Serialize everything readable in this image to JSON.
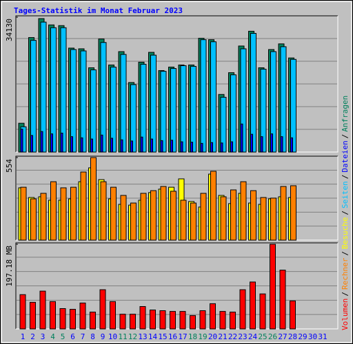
{
  "chart_data": [
    {
      "type": "bar",
      "title": "Tages-Statistik im Monat Februar 2023",
      "ylim": [
        0,
        34130
      ],
      "yticks": [
        34130
      ],
      "legend_separator": "/",
      "series": [
        {
          "name": "Anfragen",
          "color": "#00805c",
          "values": [
            7290,
            28980,
            33780,
            32180,
            32000,
            26310,
            26130,
            21330,
            28620,
            22040,
            25420,
            17600,
            22750,
            25240,
            20620,
            21510,
            22040,
            22040,
            28800,
            28440,
            14580,
            20090,
            26840,
            30580,
            21330,
            25950,
            27380,
            23820,
            null,
            null,
            null
          ]
        },
        {
          "name": "Dateien",
          "color": "#0000ff",
          "values": [
            5800,
            4200,
            5200,
            4600,
            4800,
            3900,
            3600,
            3300,
            4300,
            3500,
            3100,
            2800,
            3800,
            3300,
            2900,
            3000,
            2600,
            2500,
            2200,
            2400,
            2300,
            2600,
            7100,
            4500,
            3900,
            4600,
            3900,
            3600,
            null,
            null,
            null
          ]
        },
        {
          "name": "Seiten",
          "color": "#00c0ff",
          "values": [
            6400,
            28270,
            32890,
            31470,
            31470,
            25950,
            25600,
            20800,
            27730,
            21510,
            24710,
            17070,
            22220,
            24530,
            20440,
            21150,
            21860,
            21690,
            28440,
            27910,
            13870,
            19550,
            26130,
            30040,
            20980,
            25420,
            26660,
            23460,
            null,
            null,
            null
          ]
        }
      ]
    },
    {
      "type": "bar",
      "ylim": [
        0,
        554
      ],
      "yticks": [
        554
      ],
      "series": [
        {
          "name": "Besuche",
          "color": "#ffff00",
          "values": [
            351,
            286,
            291,
            268,
            268,
            277,
            392,
            485,
            406,
            277,
            240,
            235,
            268,
            319,
            342,
            355,
            411,
            259,
            222,
            443,
            300,
            245,
            314,
            249,
            240,
            277,
            291,
            286,
            null,
            null,
            null
          ]
        },
        {
          "name": "Rechner",
          "color": "#ff8000",
          "values": [
            355,
            277,
            314,
            392,
            351,
            355,
            457,
            554,
            392,
            355,
            300,
            249,
            314,
            332,
            360,
            328,
            268,
            249,
            314,
            462,
            291,
            337,
            392,
            332,
            286,
            282,
            360,
            365,
            null,
            null,
            null
          ]
        }
      ]
    },
    {
      "type": "bar",
      "ylim": [
        0,
        197.18
      ],
      "yticks": [
        {
          "value": 197.18,
          "label": "197.18 MB"
        }
      ],
      "categories": [
        "1",
        "2",
        "3",
        "4",
        "5",
        "6",
        "7",
        "8",
        "9",
        "10",
        "11",
        "12",
        "13",
        "14",
        "15",
        "16",
        "17",
        "18",
        "19",
        "20",
        "21",
        "22",
        "23",
        "24",
        "25",
        "26",
        "27",
        "28",
        "29",
        "30",
        "31"
      ],
      "category_colors": [
        "#0000ff",
        "#0000ff",
        "#0000ff",
        "#00805c",
        "#00805c",
        "#0000ff",
        "#0000ff",
        "#0000ff",
        "#0000ff",
        "#0000ff",
        "#00805c",
        "#00805c",
        "#0000ff",
        "#0000ff",
        "#0000ff",
        "#0000ff",
        "#0000ff",
        "#00805c",
        "#00805c",
        "#0000ff",
        "#0000ff",
        "#0000ff",
        "#0000ff",
        "#0000ff",
        "#00805c",
        "#00805c",
        "#0000ff",
        "#0000ff",
        "#0000ff",
        "#0000ff",
        "#0000ff"
      ],
      "series": [
        {
          "name": "Volumen",
          "color": "#ff0000",
          "values": [
            79.8,
            61.9,
            88,
            63.6,
            47.3,
            45.6,
            60.3,
            39.1,
            91.3,
            63.6,
            34.2,
            34.2,
            52.1,
            44,
            42.4,
            40.7,
            40.7,
            31,
            42.4,
            58.7,
            40.7,
            39.1,
            91.3,
            109.2,
            81.5,
            197.18,
            136.9,
            65.2,
            null,
            null,
            null
          ]
        }
      ]
    }
  ]
}
